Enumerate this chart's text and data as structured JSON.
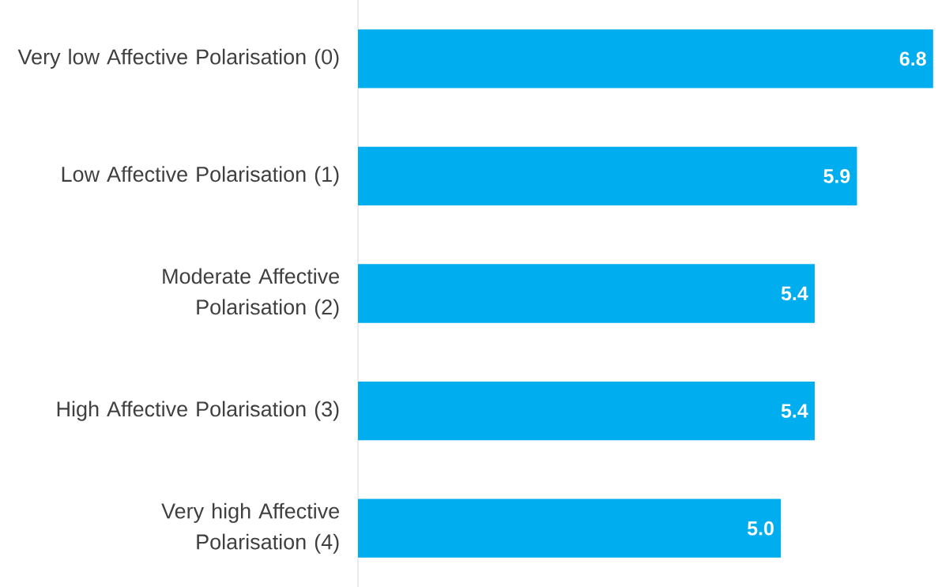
{
  "chart_data": {
    "type": "bar",
    "orientation": "horizontal",
    "categories": [
      "Very low Affective Polarisation (0)",
      "Low Affective Polarisation (1)",
      "Moderate Affective Polarisation (2)",
      "High Affective Polarisation (3)",
      "Very high Affective Polarisation (4)"
    ],
    "values": [
      6.8,
      5.9,
      5.4,
      5.4,
      5.0
    ],
    "value_labels": [
      "6.8",
      "5.9",
      "5.4",
      "5.4",
      "5.0"
    ],
    "color": "#00adee",
    "tick_labels": "y"
  }
}
